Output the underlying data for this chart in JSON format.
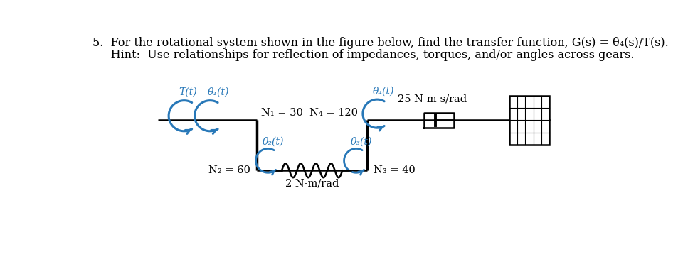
{
  "bg_color": "#ffffff",
  "text_color": "#000000",
  "blue_color": "#2878b8",
  "N1_label": "N₁ = 30",
  "N2_label": "N₂ = 60",
  "N3_label": "N₃ = 40",
  "N4_label": "N₄ = 120",
  "spring_label": "2 N-m/rad",
  "damper_label": "25 N-m-s/rad",
  "T_label": "T(t)",
  "theta1_label": "θ₁(t)",
  "theta2_label": "θ₂(t)",
  "theta3_label": "θ₃(t)",
  "theta4_label": "θ₄(t)",
  "title_line1": "5.  For the rotational system shown in the figure below, find the transfer function, G(s) = θ₄(s)/T(s).",
  "title_line2": "     Hint:  Use relationships for reflection of impedances, torques, and/or angles across gears."
}
